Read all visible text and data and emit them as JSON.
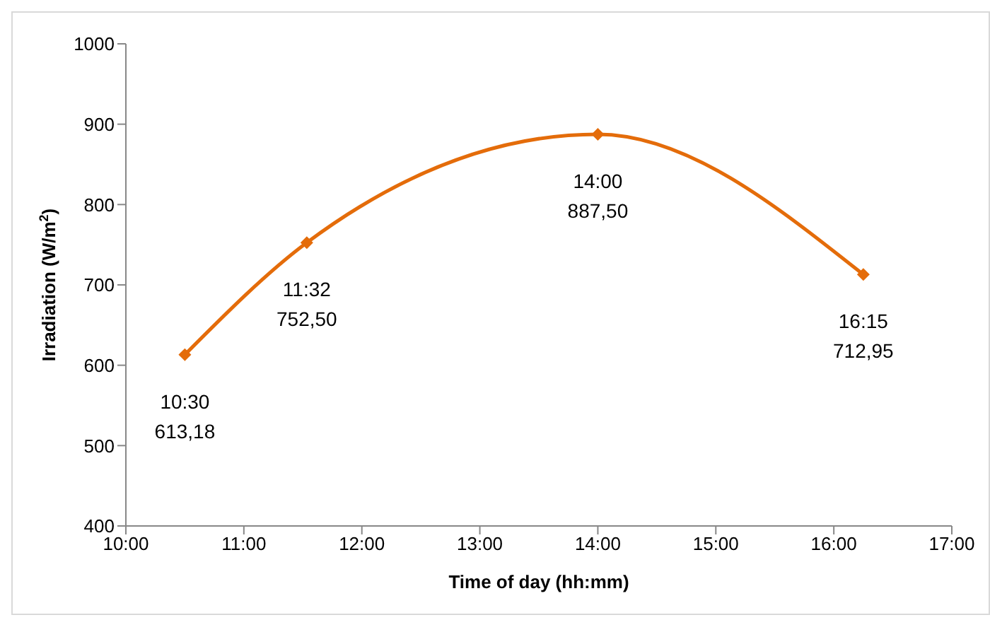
{
  "chart_data": {
    "type": "line",
    "xlabel": "Time of day (hh:mm)",
    "ylabel": "Irradiation (W/m$^{2}$)",
    "x": [
      10.5,
      11.533333,
      14,
      16.25
    ],
    "series": [
      {
        "color": "#e46c0a",
        "values": [
          613.18,
          752.5,
          887.5,
          712.95
        ],
        "value_labels": [
          "10:30\n613,18",
          "11:32\n752,50",
          "14:00\n887,50",
          "16:15\n712,95"
        ]
      }
    ],
    "xlim": [
      10,
      17
    ],
    "xticks": [
      {
        "value": 10,
        "label": "10:00"
      },
      {
        "value": 11,
        "label": "11:00"
      },
      {
        "value": 12,
        "label": "12:00"
      },
      {
        "value": 13,
        "label": "13:00"
      },
      {
        "value": 14,
        "label": "14:00"
      },
      {
        "value": 15,
        "label": "15:00"
      },
      {
        "value": 16,
        "label": "16:00"
      },
      {
        "value": 17,
        "label": "17:00"
      }
    ],
    "ylim": [
      400,
      1000
    ],
    "yticks": [
      400,
      500,
      600,
      700,
      800,
      900,
      1000
    ],
    "grid": false,
    "marker": "diamond",
    "line_style": "solid"
  }
}
